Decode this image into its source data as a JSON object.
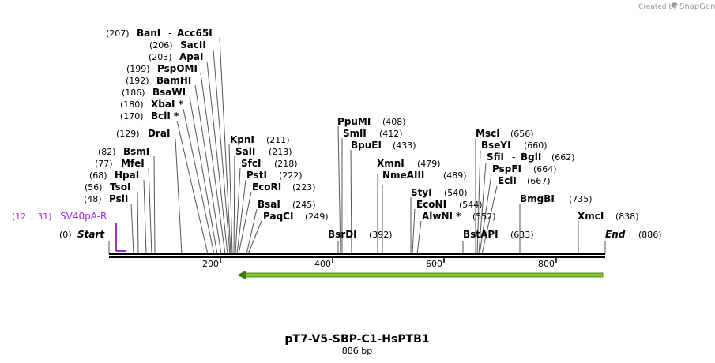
{
  "credit": {
    "created_by": "Created by",
    "brand": "SnapGene"
  },
  "map": {
    "title": "pT7-V5-SBP-C1-HsPTB1",
    "length_label": "886 bp",
    "length": 886,
    "ticks": [
      "200",
      "400",
      "600",
      "800"
    ],
    "feature": {
      "range": "(12 .. 31)",
      "name": "SV40pA-R",
      "color": "#9b30d9"
    },
    "insert_arrow_color": "#7ec832",
    "start_label": "Start",
    "start_pos": "(0)",
    "end_label": "End",
    "end_pos": "(886)"
  },
  "sites": [
    {
      "name": "BanI",
      "pos": "(207)",
      "extra": "Acc65I"
    },
    {
      "name": "SacII",
      "pos": "(206)"
    },
    {
      "name": "ApaI",
      "pos": "(203)"
    },
    {
      "name": "PspOMI",
      "pos": "(199)"
    },
    {
      "name": "BamHI",
      "pos": "(192)"
    },
    {
      "name": "BsaWI",
      "pos": "(186)"
    },
    {
      "name": "XbaI *",
      "pos": "(180)"
    },
    {
      "name": "BclI *",
      "pos": "(170)"
    },
    {
      "name": "DraI",
      "pos": "(129)"
    },
    {
      "name": "BsmI",
      "pos": "(82)"
    },
    {
      "name": "MfeI",
      "pos": "(77)"
    },
    {
      "name": "HpaI",
      "pos": "(68)"
    },
    {
      "name": "TsoI",
      "pos": "(56)"
    },
    {
      "name": "PsiI",
      "pos": "(48)"
    },
    {
      "name": "KpnI",
      "pos": "(211)"
    },
    {
      "name": "SalI",
      "pos": "(213)"
    },
    {
      "name": "SfcI",
      "pos": "(218)"
    },
    {
      "name": "PstI",
      "pos": "(222)"
    },
    {
      "name": "EcoRI",
      "pos": "(223)"
    },
    {
      "name": "BsaI",
      "pos": "(245)"
    },
    {
      "name": "PaqCI",
      "pos": "(249)"
    },
    {
      "name": "BsrDI",
      "pos": "(392)"
    },
    {
      "name": "PpuMI",
      "pos": "(408)"
    },
    {
      "name": "SmlI",
      "pos": "(412)"
    },
    {
      "name": "BpuEI",
      "pos": "(433)"
    },
    {
      "name": "XmnI",
      "pos": "(479)"
    },
    {
      "name": "NmeAIII",
      "pos": "(489)"
    },
    {
      "name": "StyI",
      "pos": "(540)"
    },
    {
      "name": "EcoNI",
      "pos": "(544)"
    },
    {
      "name": "AlwNI *",
      "pos": "(552)"
    },
    {
      "name": "BstAPI",
      "pos": "(633)"
    },
    {
      "name": "MscI",
      "pos": "(656)"
    },
    {
      "name": "BseYI",
      "pos": "(660)"
    },
    {
      "name": "SfiI",
      "pos": "(662)",
      "extra": "BglI"
    },
    {
      "name": "PspFI",
      "pos": "(664)"
    },
    {
      "name": "EclI",
      "pos": "(667)"
    },
    {
      "name": "BmgBI",
      "pos": "(735)"
    },
    {
      "name": "XmcI",
      "pos": "(838)"
    }
  ]
}
